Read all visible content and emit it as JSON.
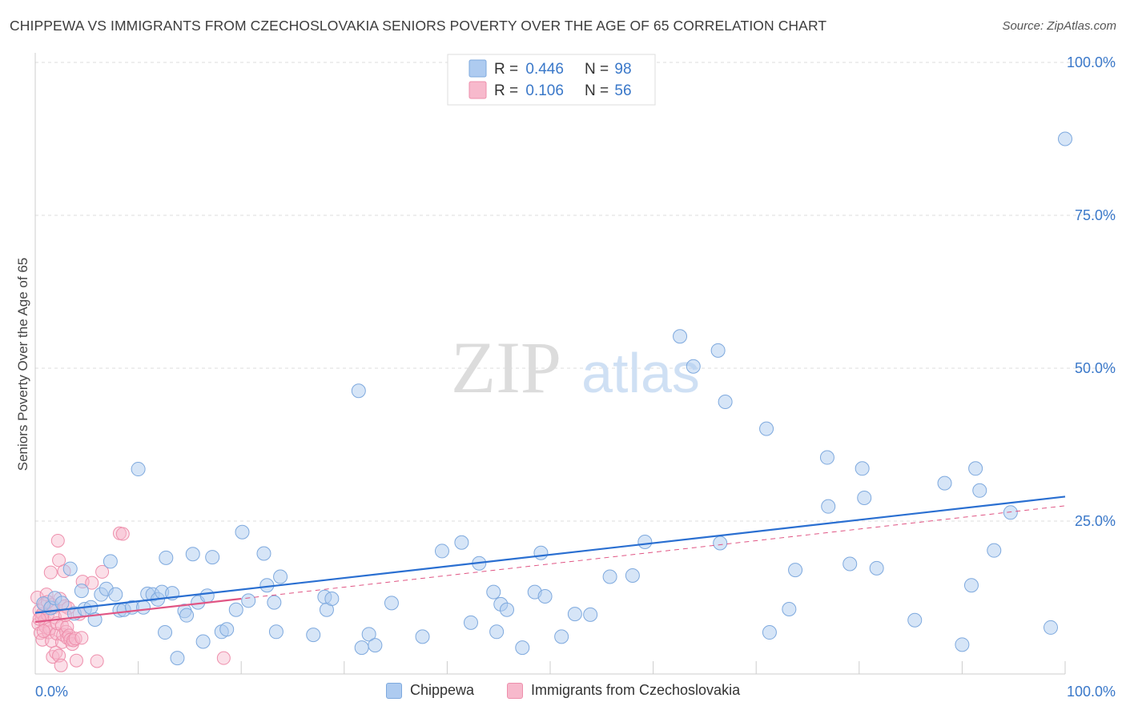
{
  "title": "CHIPPEWA VS IMMIGRANTS FROM CZECHOSLOVAKIA SENIORS POVERTY OVER THE AGE OF 65 CORRELATION CHART",
  "source": "Source: ZipAtlas.com",
  "watermark": {
    "zip": "ZIP",
    "atlas": "atlas"
  },
  "colors": {
    "series1_fill": "#aecbf0",
    "series1_stroke": "#7ea9de",
    "series1_line": "#2a6fd1",
    "series2_fill": "#f7b9cc",
    "series2_stroke": "#ee8fac",
    "series2_line": "#e05584",
    "value_text": "#3a78c9",
    "grid": "#dddddd"
  },
  "legend_top": [
    {
      "r_label": "R = ",
      "r_value": "0.446",
      "n_label": "N = ",
      "n_value": "98"
    },
    {
      "r_label": "R = ",
      "r_value": "0.106",
      "n_label": "N = ",
      "n_value": "56"
    }
  ],
  "legend_bottom": [
    "Chippewa",
    "Immigrants from Czechoslovakia"
  ],
  "chart_data": {
    "type": "scatter",
    "title": "CHIPPEWA VS IMMIGRANTS FROM CZECHOSLOVAKIA SENIORS POVERTY OVER THE AGE OF 65 CORRELATION CHART",
    "xlabel": "",
    "ylabel": "Seniors Poverty Over the Age of 65",
    "xlim": [
      0,
      100
    ],
    "ylim": [
      0,
      100
    ],
    "x_tick_labels": [
      {
        "value": 0,
        "label": "0.0%"
      },
      {
        "value": 100,
        "label": "100.0%"
      }
    ],
    "y_tick_labels": [
      {
        "value": 25,
        "label": "25.0%"
      },
      {
        "value": 50,
        "label": "50.0%"
      },
      {
        "value": 75,
        "label": "75.0%"
      },
      {
        "value": 100,
        "label": "100.0%"
      }
    ],
    "grid": true,
    "series": [
      {
        "name": "Chippewa",
        "R": 0.446,
        "N": 98,
        "trend": {
          "x0": 0,
          "y0": 10.0,
          "x1": 100,
          "y1": 29.0,
          "style": "solid"
        },
        "points": [
          [
            0.8,
            11.5
          ],
          [
            1.5,
            10.8
          ],
          [
            1.9,
            12.4
          ],
          [
            2.6,
            11.6
          ],
          [
            3.4,
            17.2
          ],
          [
            3.8,
            9.9
          ],
          [
            4.5,
            13.6
          ],
          [
            4.8,
            10.6
          ],
          [
            5.4,
            10.9
          ],
          [
            5.8,
            8.9
          ],
          [
            6.4,
            13.0
          ],
          [
            6.9,
            13.9
          ],
          [
            7.3,
            18.4
          ],
          [
            7.8,
            13.0
          ],
          [
            8.2,
            10.4
          ],
          [
            8.6,
            10.5
          ],
          [
            9.4,
            10.9
          ],
          [
            10.0,
            33.5
          ],
          [
            10.5,
            10.9
          ],
          [
            10.9,
            13.1
          ],
          [
            11.4,
            13.0
          ],
          [
            11.9,
            12.2
          ],
          [
            12.3,
            13.4
          ],
          [
            12.6,
            6.8
          ],
          [
            12.7,
            19.0
          ],
          [
            13.3,
            13.2
          ],
          [
            13.8,
            2.6
          ],
          [
            14.5,
            10.3
          ],
          [
            14.7,
            9.6
          ],
          [
            15.3,
            19.6
          ],
          [
            15.8,
            11.7
          ],
          [
            16.3,
            5.3
          ],
          [
            16.7,
            12.8
          ],
          [
            17.2,
            19.1
          ],
          [
            18.1,
            6.9
          ],
          [
            18.6,
            7.3
          ],
          [
            19.5,
            10.5
          ],
          [
            20.1,
            23.2
          ],
          [
            20.7,
            12.0
          ],
          [
            22.2,
            19.7
          ],
          [
            22.5,
            14.5
          ],
          [
            23.2,
            11.7
          ],
          [
            23.4,
            6.9
          ],
          [
            23.8,
            15.9
          ],
          [
            27.0,
            6.4
          ],
          [
            28.1,
            12.6
          ],
          [
            28.3,
            10.5
          ],
          [
            28.8,
            12.3
          ],
          [
            31.4,
            46.3
          ],
          [
            31.7,
            4.3
          ],
          [
            32.4,
            6.5
          ],
          [
            33.0,
            4.7
          ],
          [
            34.6,
            11.6
          ],
          [
            37.6,
            6.1
          ],
          [
            39.5,
            20.1
          ],
          [
            41.4,
            21.5
          ],
          [
            42.3,
            8.4
          ],
          [
            43.1,
            18.1
          ],
          [
            44.5,
            13.4
          ],
          [
            44.8,
            6.9
          ],
          [
            45.2,
            11.4
          ],
          [
            45.8,
            10.5
          ],
          [
            47.3,
            4.3
          ],
          [
            48.5,
            13.4
          ],
          [
            49.1,
            19.8
          ],
          [
            49.5,
            12.7
          ],
          [
            51.1,
            6.1
          ],
          [
            52.4,
            9.8
          ],
          [
            53.9,
            9.7
          ],
          [
            55.8,
            15.9
          ],
          [
            58.0,
            16.1
          ],
          [
            59.2,
            21.6
          ],
          [
            62.6,
            55.2
          ],
          [
            63.9,
            50.3
          ],
          [
            66.3,
            52.9
          ],
          [
            66.5,
            21.4
          ],
          [
            67.0,
            44.5
          ],
          [
            71.0,
            40.1
          ],
          [
            71.3,
            6.8
          ],
          [
            73.2,
            10.6
          ],
          [
            73.8,
            17.0
          ],
          [
            76.9,
            35.4
          ],
          [
            77.0,
            27.4
          ],
          [
            79.1,
            18.0
          ],
          [
            80.3,
            33.6
          ],
          [
            80.5,
            28.8
          ],
          [
            81.7,
            17.3
          ],
          [
            85.4,
            8.8
          ],
          [
            88.3,
            31.2
          ],
          [
            90.0,
            4.8
          ],
          [
            90.9,
            14.5
          ],
          [
            91.3,
            33.6
          ],
          [
            91.7,
            30.0
          ],
          [
            93.1,
            20.2
          ],
          [
            94.7,
            26.4
          ],
          [
            98.6,
            7.6
          ],
          [
            100.0,
            87.5
          ]
        ]
      },
      {
        "name": "Immigrants from Czechoslovakia",
        "R": 0.106,
        "N": 56,
        "trend": {
          "x0": 0,
          "y0": 8.5,
          "x1": 100,
          "y1": 27.5,
          "style": "dashed",
          "solid_until": 20
        },
        "points": [
          [
            0.2,
            12.5
          ],
          [
            0.3,
            8.2
          ],
          [
            0.4,
            10.3
          ],
          [
            0.5,
            6.7
          ],
          [
            0.6,
            9.4
          ],
          [
            0.7,
            9.8
          ],
          [
            0.7,
            5.6
          ],
          [
            0.9,
            11.4
          ],
          [
            0.9,
            8.7
          ],
          [
            1.0,
            7.7
          ],
          [
            1.1,
            13.0
          ],
          [
            1.2,
            9.7
          ],
          [
            1.3,
            6.8
          ],
          [
            1.4,
            7.4
          ],
          [
            1.5,
            16.6
          ],
          [
            1.6,
            11.3
          ],
          [
            1.6,
            5.4
          ],
          [
            1.7,
            2.8
          ],
          [
            1.8,
            10.9
          ],
          [
            1.9,
            9.3
          ],
          [
            2.0,
            3.5
          ],
          [
            2.1,
            6.6
          ],
          [
            2.1,
            8.3
          ],
          [
            2.2,
            21.8
          ],
          [
            2.3,
            18.6
          ],
          [
            2.3,
            3.0
          ],
          [
            2.4,
            12.3
          ],
          [
            2.5,
            1.4
          ],
          [
            2.6,
            5.2
          ],
          [
            2.6,
            7.9
          ],
          [
            2.7,
            6.4
          ],
          [
            2.8,
            16.8
          ],
          [
            2.9,
            11.1
          ],
          [
            3.0,
            6.9
          ],
          [
            3.1,
            7.7
          ],
          [
            3.1,
            5.9
          ],
          [
            3.2,
            10.8
          ],
          [
            3.3,
            6.3
          ],
          [
            3.4,
            5.6
          ],
          [
            3.6,
            4.9
          ],
          [
            3.7,
            5.5
          ],
          [
            3.9,
            5.8
          ],
          [
            4.0,
            2.2
          ],
          [
            4.3,
            9.8
          ],
          [
            4.5,
            5.9
          ],
          [
            4.6,
            15.1
          ],
          [
            5.5,
            14.9
          ],
          [
            6.0,
            2.1
          ],
          [
            6.5,
            16.7
          ],
          [
            8.2,
            23.0
          ],
          [
            8.5,
            22.9
          ],
          [
            18.3,
            2.6
          ],
          [
            0.4,
            9.0
          ],
          [
            1.2,
            11.8
          ],
          [
            0.8,
            7.0
          ],
          [
            2.9,
            9.6
          ]
        ]
      }
    ]
  }
}
